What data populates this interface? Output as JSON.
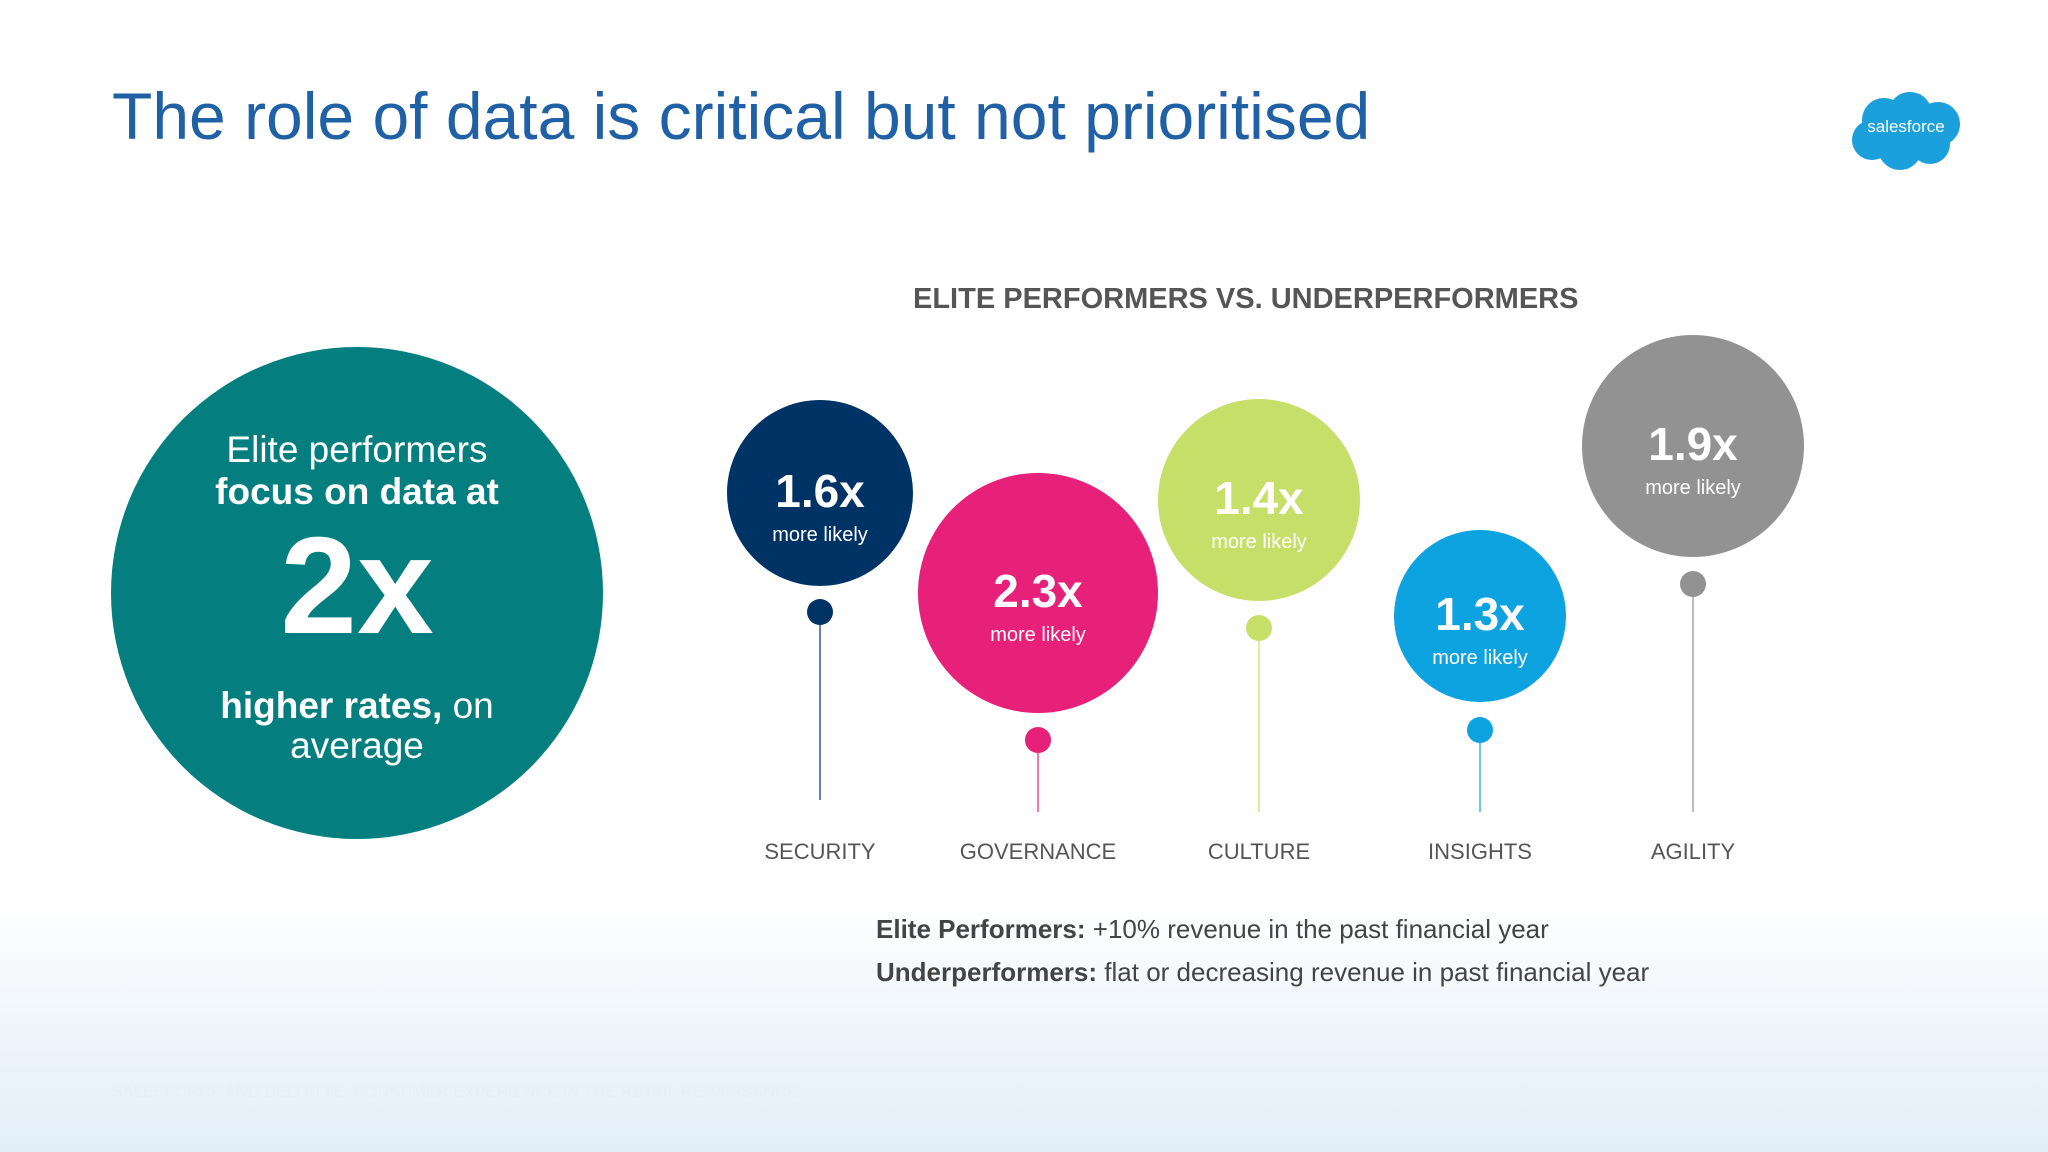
{
  "title": "The role of data is critical but not prioritised",
  "logo": {
    "text": "salesforce",
    "color": "#1ba0dc"
  },
  "highlight": {
    "line1": "Elite performers",
    "line2": "focus on data at",
    "value": "2x",
    "line3_bold": "higher rates,",
    "line3_rest": " on",
    "line4": "average",
    "color": "#047e7e"
  },
  "chart_data": {
    "type": "scatter",
    "title": "ELITE PERFORMERS VS. UNDERPERFORMERS",
    "categories": [
      "SECURITY",
      "GOVERNANCE",
      "CULTURE",
      "INSIGHTS",
      "AGILITY"
    ],
    "values": [
      1.6,
      2.3,
      1.4,
      1.3,
      1.9
    ],
    "value_labels": [
      "1.6x",
      "2.3x",
      "1.4x",
      "1.3x",
      "1.9x"
    ],
    "sublabel": "more likely",
    "colors": [
      "#003365",
      "#e7207a",
      "#c5df69",
      "#0da2e0",
      "#929292"
    ]
  },
  "legend": {
    "elite_label": "Elite Performers:",
    "elite_text": " +10% revenue in the past financial year",
    "under_label": "Underperformers:",
    "under_text": " flat or decreasing revenue in past financial year"
  },
  "source": "SALESFORCE AND DELOITTE, CONSUMER EXPERIENCE IN THE RETAIL RENAISSANCE"
}
